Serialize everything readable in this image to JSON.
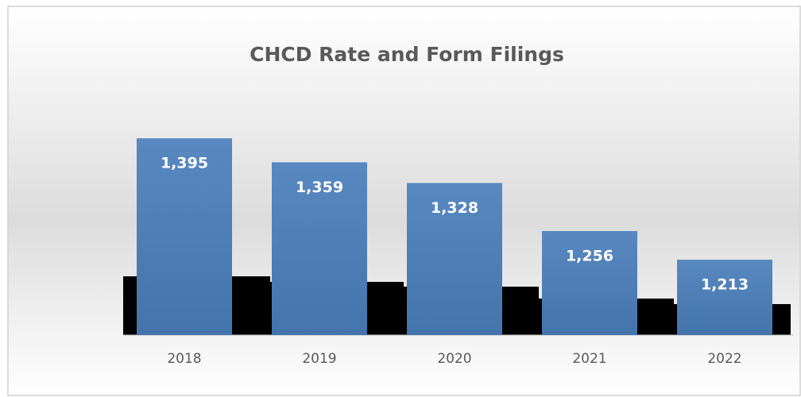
{
  "chart_data": {
    "type": "bar",
    "title": "CHCD Rate and Form Filings",
    "categories": [
      "2018",
      "2019",
      "2020",
      "2021",
      "2022"
    ],
    "values": [
      1395,
      1359,
      1328,
      1256,
      1213
    ],
    "value_labels": [
      "1,395",
      "1,359",
      "1,328",
      "1,256",
      "1,213"
    ],
    "color": "#4a7ebb",
    "ylim": [
      1100,
      1400
    ]
  }
}
